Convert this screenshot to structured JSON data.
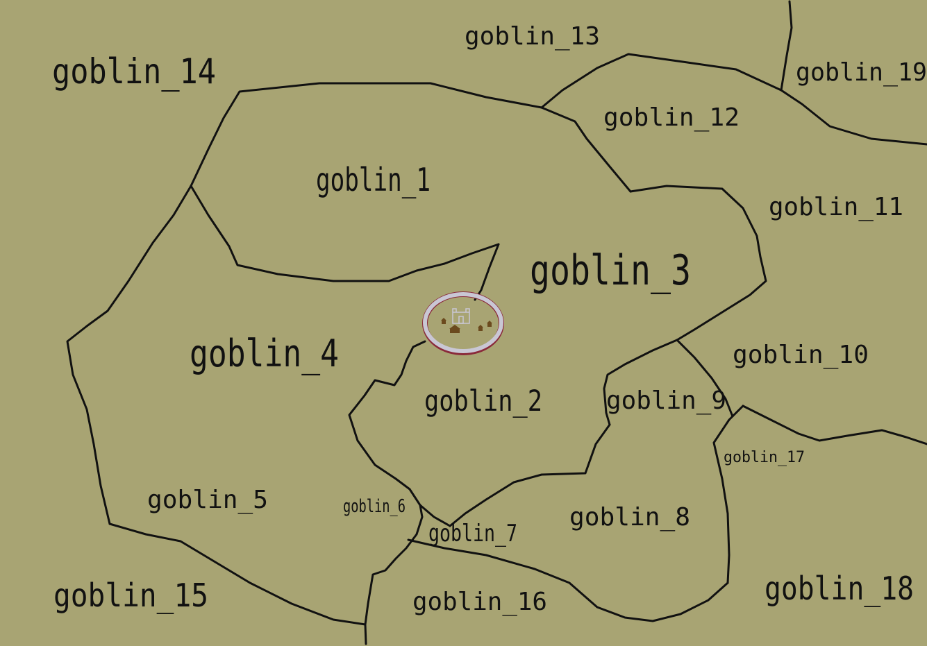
{
  "map": {
    "background_color": "#a8a473",
    "border_color": "#111111",
    "settlement": {
      "ring_color": "#c9c7d4",
      "ring_edge_color": "#8a2a3a",
      "icons": [
        "castle-icon",
        "hut-icon",
        "hut-icon",
        "hut-icon",
        "hut-icon"
      ]
    },
    "regions": [
      {
        "id": "goblin_1",
        "label": "goblin_1"
      },
      {
        "id": "goblin_2",
        "label": "goblin_2"
      },
      {
        "id": "goblin_3",
        "label": "goblin_3"
      },
      {
        "id": "goblin_4",
        "label": "goblin_4"
      },
      {
        "id": "goblin_5",
        "label": "goblin_5"
      },
      {
        "id": "goblin_6",
        "label": "goblin_6"
      },
      {
        "id": "goblin_7",
        "label": "goblin_7"
      },
      {
        "id": "goblin_8",
        "label": "goblin_8"
      },
      {
        "id": "goblin_9",
        "label": "goblin_9"
      },
      {
        "id": "goblin_10",
        "label": "goblin_10"
      },
      {
        "id": "goblin_11",
        "label": "goblin_11"
      },
      {
        "id": "goblin_12",
        "label": "goblin_12"
      },
      {
        "id": "goblin_13",
        "label": "goblin_13"
      },
      {
        "id": "goblin_14",
        "label": "goblin_14"
      },
      {
        "id": "goblin_15",
        "label": "goblin_15"
      },
      {
        "id": "goblin_16",
        "label": "goblin_16"
      },
      {
        "id": "goblin_17",
        "label": "goblin_17"
      },
      {
        "id": "goblin_18",
        "label": "goblin_18"
      },
      {
        "id": "goblin_19",
        "label": "goblin_19"
      }
    ]
  }
}
